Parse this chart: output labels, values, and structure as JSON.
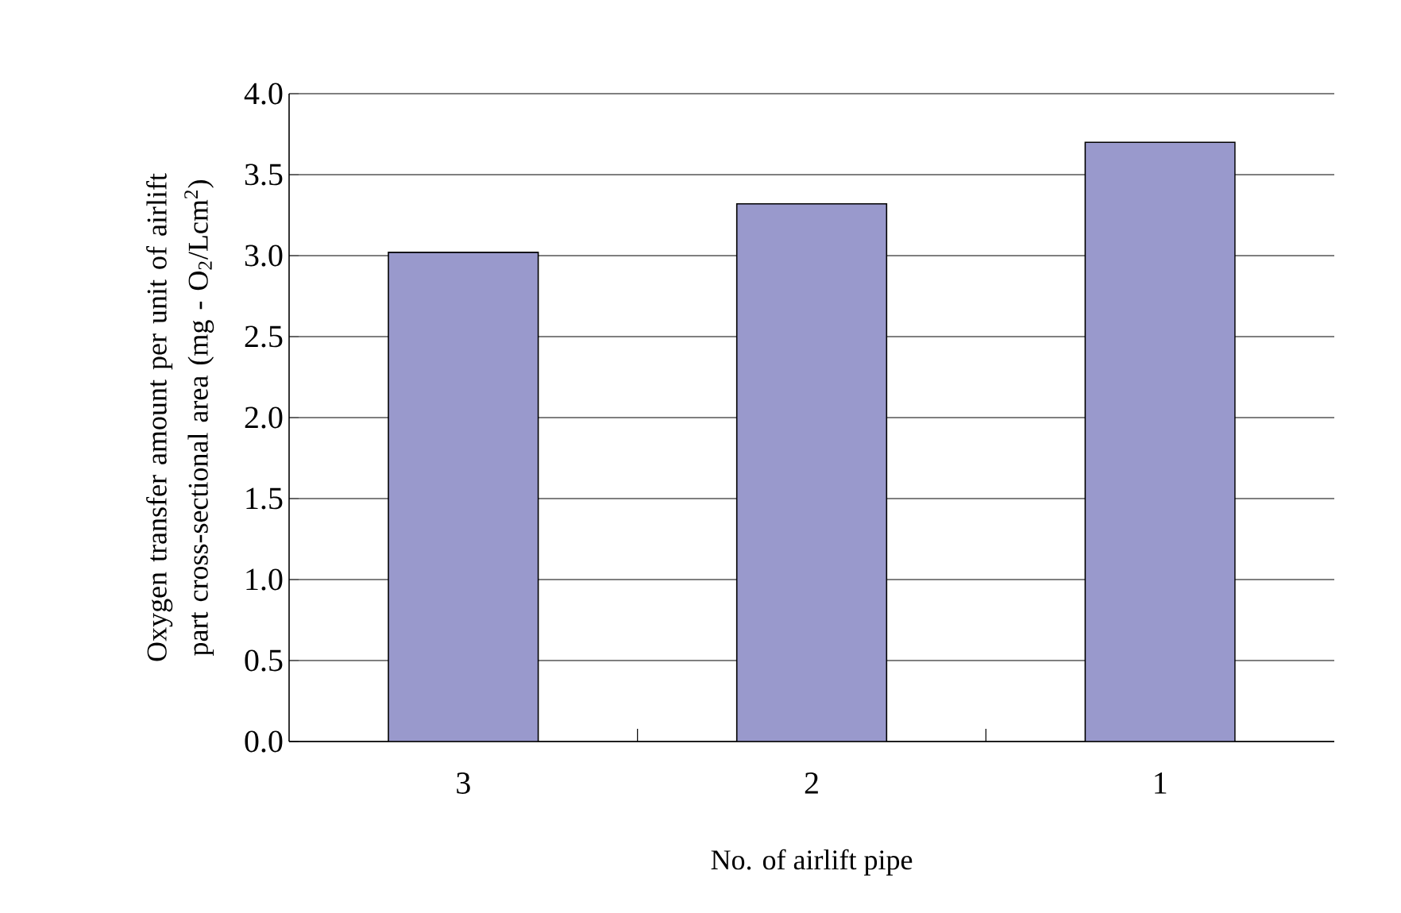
{
  "chart_data": {
    "type": "bar",
    "xlabel": "No. of airlift pipe",
    "ylabel": "Oxygen transfer amount per unit of airlift part cross-sectional area (mg - O$_{2}$/Lcm$^{2}$)",
    "categories": [
      "3",
      "2",
      "1"
    ],
    "values": [
      3.02,
      3.32,
      3.7
    ],
    "color": "#9999cc",
    "ylim": [
      0,
      4
    ],
    "yticks": [
      {
        "value": 0,
        "label": "0.0"
      },
      {
        "value": 0.5,
        "label": "0.5"
      },
      {
        "value": 1,
        "label": "1.0"
      },
      {
        "value": 1.5,
        "label": "1.5"
      },
      {
        "value": 2,
        "label": "2.0"
      },
      {
        "value": 2.5,
        "label": "2.5"
      },
      {
        "value": 3,
        "label": "3.0"
      },
      {
        "value": 3.5,
        "label": "3.5"
      },
      {
        "value": 4,
        "label": "4.0"
      }
    ],
    "grid": "y"
  }
}
